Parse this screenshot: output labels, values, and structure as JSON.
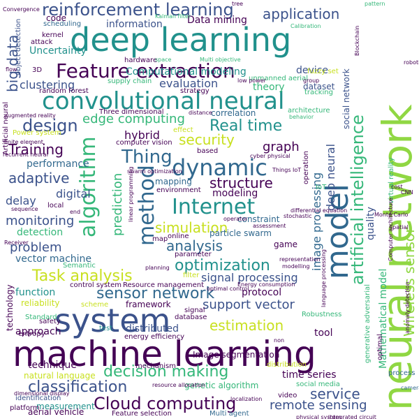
{
  "palette": {
    "purple": "#440154",
    "indigo": "#3b528b",
    "blue": "#31688e",
    "teal": "#21918c",
    "green": "#35b779",
    "lime": "#90d743",
    "yellow": "#c8e020",
    "lightyellow": "#fde725"
  },
  "words": [
    {
      "text": "neural network",
      "color": "#90d743"
    },
    {
      "text": "deep learning",
      "color": "#21918c"
    },
    {
      "text": "machine learning",
      "color": "#440154"
    },
    {
      "text": "convolutional neural",
      "color": "#21918c"
    },
    {
      "text": "Feature extraction",
      "color": "#440154"
    },
    {
      "text": "system",
      "color": "#3b528b"
    },
    {
      "text": "reinforcement learning",
      "color": "#3b528b"
    },
    {
      "text": "model",
      "color": "#31688e"
    },
    {
      "text": "algorithm",
      "color": "#35b779"
    },
    {
      "text": "Internet",
      "color": "#21918c"
    },
    {
      "text": "method",
      "color": "#31688e"
    },
    {
      "text": "artificial intelligence",
      "color": "#35b779"
    },
    {
      "text": "Wireless sensor",
      "color": "#90d743"
    },
    {
      "text": "Cloud computing",
      "color": "#440154"
    },
    {
      "text": "dynamic",
      "color": "#31688e"
    },
    {
      "text": "Thing",
      "color": "#31688e"
    },
    {
      "text": "design",
      "color": "#3b528b"
    },
    {
      "text": "Real time",
      "color": "#21918c"
    },
    {
      "text": "optimization",
      "color": "#21918c"
    },
    {
      "text": "Task analysis",
      "color": "#c8e020"
    },
    {
      "text": "sensor network",
      "color": "#31688e"
    },
    {
      "text": "classification",
      "color": "#3b528b"
    },
    {
      "text": "decision making",
      "color": "#35b779"
    },
    {
      "text": "application",
      "color": "#3b528b"
    },
    {
      "text": "service",
      "color": "#3b528b"
    },
    {
      "text": "remote sensing",
      "color": "#3b528b"
    },
    {
      "text": "estimation",
      "color": "#c8e020"
    },
    {
      "text": "simulation",
      "color": "#c8e020"
    },
    {
      "text": "analysis",
      "color": "#31688e"
    },
    {
      "text": "structure",
      "color": "#440154"
    },
    {
      "text": "security",
      "color": "#c8e020"
    },
    {
      "text": "big data",
      "color": "#3b528b"
    },
    {
      "text": "edge computing",
      "color": "#35b779"
    },
    {
      "text": "adaptive",
      "color": "#3b528b"
    },
    {
      "text": "problem",
      "color": "#3b528b"
    },
    {
      "text": "monitoring",
      "color": "#3b528b"
    },
    {
      "text": "Training",
      "color": "#440154"
    },
    {
      "text": "prediction",
      "color": "#35b779"
    },
    {
      "text": "support vector",
      "color": "#3b528b"
    },
    {
      "text": "Mathematical model",
      "color": "#35b779"
    },
    {
      "text": "signal processing",
      "color": "#3b528b"
    },
    {
      "text": "image processing",
      "color": "#31688e"
    },
    {
      "text": "deep neural",
      "color": "#3b528b"
    },
    {
      "text": "information",
      "color": "#3b528b"
    },
    {
      "text": "Data mining",
      "color": "#440154"
    },
    {
      "text": "Computational modeling",
      "color": "#21918c"
    },
    {
      "text": "Uncertainty",
      "color": "#21918c"
    },
    {
      "text": "clustering",
      "color": "#3b528b"
    },
    {
      "text": "evaluation",
      "color": "#3b528b"
    },
    {
      "text": "graph",
      "color": "#440154"
    },
    {
      "text": "hybrid",
      "color": "#440154"
    },
    {
      "text": "performance",
      "color": "#31688e"
    },
    {
      "text": "digital",
      "color": "#3b528b"
    },
    {
      "text": "delay",
      "color": "#3b528b"
    },
    {
      "text": "detection",
      "color": "#35b779"
    },
    {
      "text": "vector machine",
      "color": "#31688e"
    },
    {
      "text": "approach",
      "color": "#440154"
    },
    {
      "text": "technique",
      "color": "#440154"
    },
    {
      "text": "distributed",
      "color": "#3b528b"
    },
    {
      "text": "time series",
      "color": "#440154"
    },
    {
      "text": "generative adversarial",
      "color": "#35b779"
    },
    {
      "text": "social network",
      "color": "#3b528b"
    },
    {
      "text": "device",
      "color": "#3b528b"
    },
    {
      "text": "theory",
      "color": "#35b779"
    },
    {
      "text": "dataset",
      "color": "#3b528b"
    },
    {
      "text": "protocol",
      "color": "#440154"
    },
    {
      "text": "framework",
      "color": "#440154"
    },
    {
      "text": "reliability",
      "color": "#c8e020"
    },
    {
      "text": "function",
      "color": "#21918c"
    },
    {
      "text": "measurement",
      "color": "#21918c"
    },
    {
      "text": "genetic algorithm",
      "color": "#35b779"
    },
    {
      "text": "virtual reality",
      "color": "#35b779"
    },
    {
      "text": "quality",
      "color": "#3b528b"
    },
    {
      "text": "correlation",
      "color": "#31688e"
    },
    {
      "text": "modeling",
      "color": "#440154"
    },
    {
      "text": "mapping",
      "color": "#31688e"
    },
    {
      "text": "Image segmentation",
      "color": "#440154"
    },
    {
      "text": "energy efficiency",
      "color": "#440154"
    },
    {
      "text": "tool",
      "color": "#440154"
    },
    {
      "text": "Robustness",
      "color": "#35b779"
    },
    {
      "text": "game",
      "color": "#440154"
    },
    {
      "text": "constraint",
      "color": "#31688e"
    },
    {
      "text": "particle swarm",
      "color": "#31688e"
    },
    {
      "text": "aerial vehicle",
      "color": "#440154"
    },
    {
      "text": "natural language",
      "color": "#c8e020"
    },
    {
      "text": "identification",
      "color": "#3b528b"
    },
    {
      "text": "Feature selection",
      "color": "#440154"
    },
    {
      "text": "Multi agent",
      "color": "#31688e"
    },
    {
      "text": "video",
      "color": "#440154"
    },
    {
      "text": "social media",
      "color": "#35b779"
    },
    {
      "text": "process",
      "color": "#31688e"
    },
    {
      "text": "camera",
      "color": "#31688e"
    },
    {
      "text": "technology",
      "color": "#440154"
    },
    {
      "text": "code",
      "color": "#440154"
    },
    {
      "text": "scheduling",
      "color": "#31688e"
    },
    {
      "text": "attack",
      "color": "#440154"
    },
    {
      "text": "kernel",
      "color": "#440154"
    },
    {
      "text": "hardware",
      "color": "#440154"
    },
    {
      "text": "object detection",
      "color": "#3b528b"
    },
    {
      "text": "random forest",
      "color": "#440154"
    },
    {
      "text": "Convergence",
      "color": "#440154"
    },
    {
      "text": "supply chain",
      "color": "#35b779"
    },
    {
      "text": "unmanned aerial",
      "color": "#35b779"
    },
    {
      "text": "strategy",
      "color": "#440154"
    },
    {
      "text": "architecture",
      "color": "#35b779"
    },
    {
      "text": "behavior",
      "color": "#35b779"
    },
    {
      "text": "effect",
      "color": "#c8e020"
    },
    {
      "text": "Three dimensional",
      "color": "#440154"
    },
    {
      "text": "computer vision",
      "color": "#440154"
    },
    {
      "text": "based",
      "color": "#440154"
    },
    {
      "text": "operation",
      "color": "#440154"
    },
    {
      "text": "IoT",
      "color": "#35b779"
    },
    {
      "text": "local",
      "color": "#440154"
    },
    {
      "text": "environment",
      "color": "#440154"
    },
    {
      "text": "map",
      "color": "#440154"
    },
    {
      "text": "online",
      "color": "#440154"
    },
    {
      "text": "parameter",
      "color": "#440154"
    },
    {
      "text": "Resource management",
      "color": "#440154"
    },
    {
      "text": "control system",
      "color": "#440154"
    },
    {
      "text": "safety",
      "color": "#440154"
    },
    {
      "text": "Standard",
      "color": "#35b779"
    },
    {
      "text": "entropy",
      "color": "#440154"
    },
    {
      "text": "test",
      "color": "#21918c"
    },
    {
      "text": "signal",
      "color": "#440154"
    },
    {
      "text": "database",
      "color": "#440154"
    },
    {
      "text": "distribution",
      "color": "#c8e020"
    },
    {
      "text": "mechanism",
      "color": "#440154"
    },
    {
      "text": "platform",
      "color": "#440154"
    },
    {
      "text": "Semantic",
      "color": "#35b779"
    },
    {
      "text": "scheme",
      "color": "#c8e020"
    },
    {
      "text": "filter",
      "color": "#c8e020"
    },
    {
      "text": "planning",
      "color": "#440154"
    },
    {
      "text": "Power system",
      "color": "#c8e020"
    },
    {
      "text": "sequence",
      "color": "#440154"
    },
    {
      "text": "optimal",
      "color": "#440154"
    },
    {
      "text": "fuzzy set",
      "color": "#c8e020"
    },
    {
      "text": "Kalman filter",
      "color": "#35b779"
    },
    {
      "text": "tracking",
      "color": "#35b779"
    },
    {
      "text": "3D",
      "color": "#440154"
    },
    {
      "text": "flow",
      "color": "#440154"
    },
    {
      "text": "space",
      "color": "#35b779"
    },
    {
      "text": "Multi objective",
      "color": "#35b779"
    },
    {
      "text": "tree",
      "color": "#440154"
    },
    {
      "text": "pattern",
      "color": "#35b779"
    },
    {
      "text": "Calibration",
      "color": "#35b779"
    },
    {
      "text": "Blockchain",
      "color": "#440154"
    },
    {
      "text": "low power",
      "color": "#440154"
    },
    {
      "text": "group",
      "color": "#440154"
    },
    {
      "text": "distance",
      "color": "#440154"
    },
    {
      "text": "cyber physical",
      "color": "#440154"
    },
    {
      "text": "swarm optimization",
      "color": "#440154"
    },
    {
      "text": "Things IoT",
      "color": "#440154"
    },
    {
      "text": "Monte Carlo",
      "color": "#440154"
    },
    {
      "text": "spatial",
      "color": "#440154"
    },
    {
      "text": "representation",
      "color": "#440154"
    },
    {
      "text": "modelling",
      "color": "#440154"
    },
    {
      "text": "Energy consumption",
      "color": "#440154"
    },
    {
      "text": "optimal control",
      "color": "#440154"
    },
    {
      "text": "Receiver",
      "color": "#440154"
    },
    {
      "text": "finite element",
      "color": "#440154"
    },
    {
      "text": "physical system",
      "color": "#440154"
    },
    {
      "text": "integrated circuit",
      "color": "#440154"
    },
    {
      "text": "resource allocation",
      "color": "#440154"
    },
    {
      "text": "localization",
      "color": "#440154"
    },
    {
      "text": "dimensional display",
      "color": "#440154"
    },
    {
      "text": "operator",
      "color": "#440154"
    },
    {
      "text": "stochastic",
      "color": "#440154"
    },
    {
      "text": "differential equation",
      "color": "#440154"
    },
    {
      "text": "language processing",
      "color": "#440154"
    },
    {
      "text": "Computer architecture",
      "color": "#440154"
    },
    {
      "text": "anomaly detection",
      "color": "#440154"
    },
    {
      "text": "linear programming",
      "color": "#440154"
    },
    {
      "text": "Artificial neural",
      "color": "#440154"
    },
    {
      "text": "augmented reality",
      "color": "#440154"
    },
    {
      "text": "recurrent neural",
      "color": "#440154"
    },
    {
      "text": "CNN",
      "color": "#440154"
    },
    {
      "text": "robotic",
      "color": "#440154"
    },
    {
      "text": "assessment",
      "color": "#440154"
    },
    {
      "text": "non",
      "color": "#440154"
    },
    {
      "text": "end",
      "color": "#440154"
    },
    {
      "text": "cost",
      "color": "#440154"
    }
  ]
}
